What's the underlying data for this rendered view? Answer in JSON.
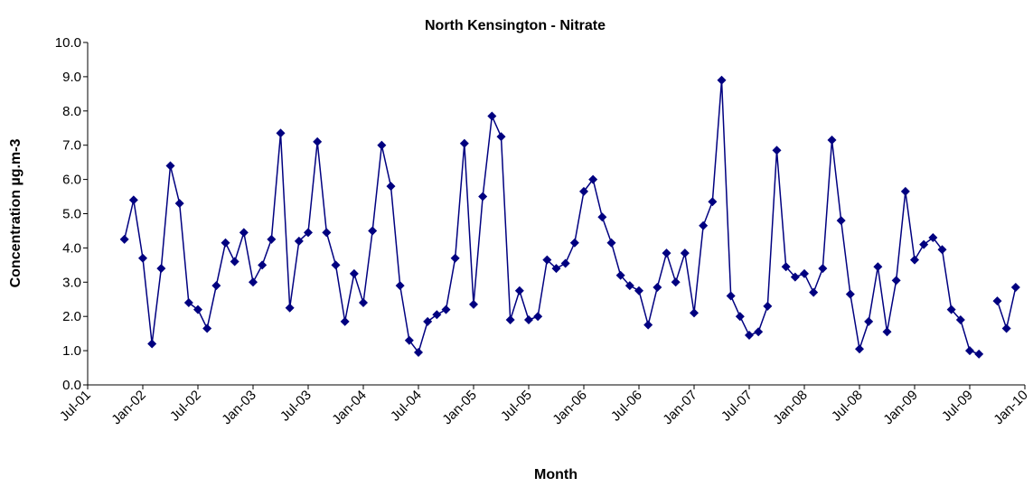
{
  "chart_data": {
    "type": "line",
    "title": "North Kensington - Nitrate",
    "x_label": "Month",
    "y_label": "Concentration  µg.m-3",
    "categories": [
      "Jul-01",
      null,
      null,
      null,
      null,
      null,
      "Jan-02",
      null,
      null,
      null,
      null,
      null,
      "Jul-02",
      null,
      null,
      null,
      null,
      null,
      "Jan-03",
      null,
      null,
      null,
      null,
      null,
      "Jul-03",
      null,
      null,
      null,
      null,
      null,
      "Jan-04",
      null,
      null,
      null,
      null,
      null,
      "Jul-04",
      null,
      null,
      null,
      null,
      null,
      "Jan-05",
      null,
      null,
      null,
      null,
      null,
      "Jul-05",
      null,
      null,
      null,
      null,
      null,
      "Jan-06",
      null,
      null,
      null,
      null,
      null,
      "Jul-06",
      null,
      null,
      null,
      null,
      null,
      "Jan-07",
      null,
      null,
      null,
      null,
      null,
      "Jul-07",
      null,
      null,
      null,
      null,
      null,
      "Jan-08",
      null,
      null,
      null,
      null,
      null,
      "Jul-08",
      null,
      null,
      null,
      null,
      null,
      "Jan-09",
      null,
      null,
      null,
      null,
      null,
      "Jul-09",
      null,
      null,
      null,
      null,
      null,
      "Jan-10"
    ],
    "series": [
      {
        "color": "#000080",
        "values": [
          null,
          null,
          null,
          null,
          4.25,
          5.4,
          3.7,
          1.2,
          3.4,
          6.4,
          5.3,
          2.4,
          2.2,
          1.65,
          2.9,
          4.15,
          3.6,
          4.45,
          3.0,
          3.5,
          4.25,
          7.35,
          2.25,
          4.2,
          4.45,
          7.1,
          4.45,
          3.5,
          1.85,
          3.25,
          2.4,
          4.5,
          7.0,
          5.8,
          2.9,
          1.3,
          0.95,
          1.85,
          2.05,
          2.2,
          3.7,
          7.05,
          2.35,
          5.5,
          7.85,
          7.25,
          1.9,
          2.75,
          1.9,
          2.0,
          3.65,
          3.4,
          3.55,
          4.15,
          5.65,
          6.0,
          4.9,
          4.15,
          3.2,
          2.9,
          2.75,
          1.75,
          2.85,
          3.85,
          3.0,
          3.85,
          2.1,
          4.65,
          5.35,
          8.9,
          2.6,
          2.0,
          1.45,
          1.55,
          2.3,
          6.85,
          3.45,
          3.15,
          3.25,
          2.7,
          3.4,
          7.15,
          4.8,
          2.65,
          1.05,
          1.85,
          3.45,
          1.55,
          3.05,
          5.65,
          3.65,
          4.1,
          4.3,
          3.95,
          2.2,
          1.9,
          1.0,
          0.9,
          null,
          2.45,
          1.65,
          2.85,
          null
        ]
      }
    ],
    "ylim": [
      0,
      10
    ],
    "yticks": [
      {
        "value": 0,
        "label": "0.0"
      },
      {
        "value": 1,
        "label": "1.0"
      },
      {
        "value": 2,
        "label": "2.0"
      },
      {
        "value": 3,
        "label": "3.0"
      },
      {
        "value": 4,
        "label": "4.0"
      },
      {
        "value": 5,
        "label": "5.0"
      },
      {
        "value": 6,
        "label": "6.0"
      },
      {
        "value": 7,
        "label": "7.0"
      },
      {
        "value": 8,
        "label": "8.0"
      },
      {
        "value": 9,
        "label": "9.0"
      },
      {
        "value": 10,
        "label": "10.0"
      }
    ],
    "grid": false
  }
}
